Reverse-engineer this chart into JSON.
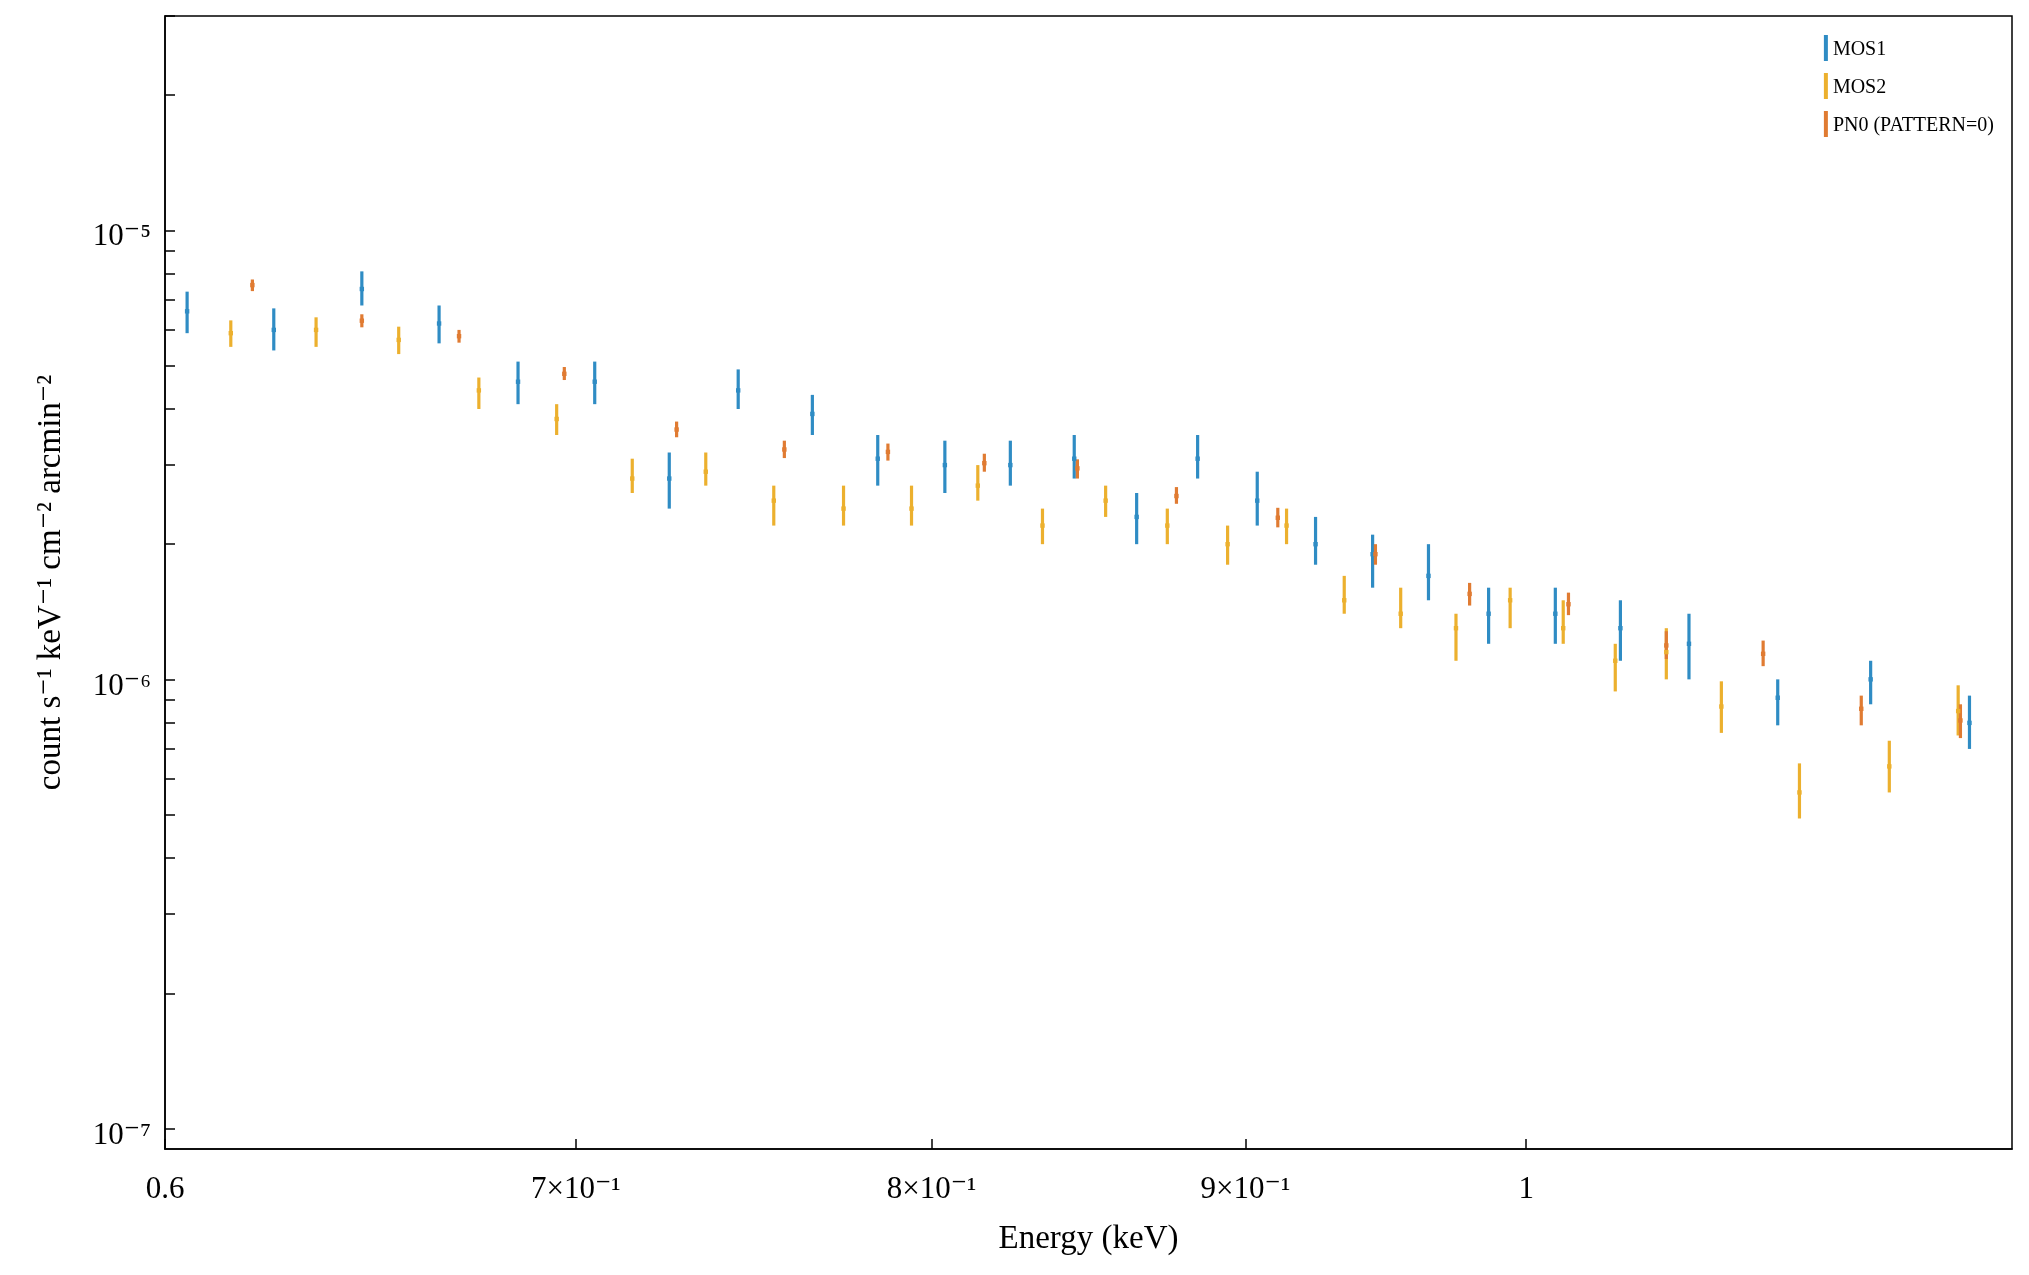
{
  "chart_data": {
    "type": "scatter",
    "xlabel": "Energy (keV)",
    "ylabel": "count s⁻¹ keV⁻¹ cm⁻² arcmin⁻²",
    "log": "xy",
    "marker": "square",
    "legend": "top right",
    "grid": false,
    "xlim": [
      0.6,
      1.2
    ],
    "xticks": [
      {
        "value": 0.6,
        "label": "0.6"
      },
      {
        "value": 0.7,
        "label": "7×10⁻¹"
      },
      {
        "value": 0.8,
        "label": "8×10⁻¹"
      },
      {
        "value": 0.9,
        "label": "9×10⁻¹"
      },
      {
        "value": 1,
        "label": "1"
      }
    ],
    "ylim": [
      9e-08,
      3e-05
    ],
    "yticks": [
      {
        "value": 1e-07,
        "label": "10⁻⁷"
      },
      {
        "value": 2e-07,
        "label": null
      },
      {
        "value": 3e-07,
        "label": null
      },
      {
        "value": 4e-07,
        "label": null
      },
      {
        "value": 5e-07,
        "label": null
      },
      {
        "value": 6e-07,
        "label": null
      },
      {
        "value": 7e-07,
        "label": null
      },
      {
        "value": 8e-07,
        "label": null
      },
      {
        "value": 9e-07,
        "label": null
      },
      {
        "value": 1e-06,
        "label": "10⁻⁶"
      },
      {
        "value": 2e-06,
        "label": null
      },
      {
        "value": 3e-06,
        "label": null
      },
      {
        "value": 4e-06,
        "label": null
      },
      {
        "value": 5e-06,
        "label": null
      },
      {
        "value": 6e-06,
        "label": null
      },
      {
        "value": 7e-06,
        "label": null
      },
      {
        "value": 8e-06,
        "label": null
      },
      {
        "value": 9e-06,
        "label": null
      },
      {
        "value": 1e-05,
        "label": "10⁻⁵"
      },
      {
        "value": 2e-05,
        "label": null
      },
      {
        "value": 3e-05,
        "label": null
      }
    ],
    "series": [
      {
        "name": "MOS1",
        "color": "#2f8cc4",
        "x": [
          0.605,
          0.625,
          0.646,
          0.665,
          0.685,
          0.705,
          0.725,
          0.744,
          0.765,
          0.784,
          0.804,
          0.824,
          0.844,
          0.864,
          0.884,
          0.904,
          0.924,
          0.944,
          0.964,
          0.986,
          1.011,
          1.036,
          1.063,
          1.099,
          1.138,
          1.181
        ],
        "values": [
          6.6e-06,
          6e-06,
          7.4e-06,
          6.2e-06,
          4.6e-06,
          4.6e-06,
          2.8e-06,
          4.4e-06,
          3.9e-06,
          3.1e-06,
          3e-06,
          3e-06,
          3.1e-06,
          2.3e-06,
          3.1e-06,
          2.5e-06,
          2e-06,
          1.9e-06,
          1.7e-06,
          1.4e-06,
          1.4e-06,
          1.3e-06,
          1.2e-06,
          9.1e-07,
          1e-06,
          8e-07
        ],
        "errors": [
          [
            5.9e-06,
            7.3e-06
          ],
          [
            5.4e-06,
            6.7e-06
          ],
          [
            6.8e-06,
            8.1e-06
          ],
          [
            5.6e-06,
            6.8e-06
          ],
          [
            4.1e-06,
            5.1e-06
          ],
          [
            4.1e-06,
            5.1e-06
          ],
          [
            2.4e-06,
            3.2e-06
          ],
          [
            4e-06,
            4.9e-06
          ],
          [
            3.5e-06,
            4.3e-06
          ],
          [
            2.7e-06,
            3.5e-06
          ],
          [
            2.6e-06,
            3.4e-06
          ],
          [
            2.7e-06,
            3.4e-06
          ],
          [
            2.8e-06,
            3.5e-06
          ],
          [
            2e-06,
            2.6e-06
          ],
          [
            2.8e-06,
            3.5e-06
          ],
          [
            2.2e-06,
            2.9e-06
          ],
          [
            1.8e-06,
            2.3e-06
          ],
          [
            1.6e-06,
            2.1e-06
          ],
          [
            1.5e-06,
            2e-06
          ],
          [
            1.2e-06,
            1.6e-06
          ],
          [
            1.2e-06,
            1.6e-06
          ],
          [
            1.1e-06,
            1.5e-06
          ],
          [
            1e-06,
            1.4e-06
          ],
          [
            7.9e-07,
            1e-06
          ],
          [
            8.8e-07,
            1.1e-06
          ],
          [
            7e-07,
            9.2e-07
          ]
        ]
      },
      {
        "name": "MOS2",
        "color": "#ecb02e",
        "x": [
          0.615,
          0.635,
          0.655,
          0.675,
          0.695,
          0.715,
          0.735,
          0.754,
          0.774,
          0.794,
          0.814,
          0.834,
          0.854,
          0.874,
          0.894,
          0.914,
          0.934,
          0.954,
          0.974,
          0.994,
          1.014,
          1.034,
          1.054,
          1.076,
          1.108,
          1.146,
          1.176
        ],
        "values": [
          5.9e-06,
          6e-06,
          5.7e-06,
          4.4e-06,
          3.8e-06,
          2.8e-06,
          2.9e-06,
          2.5e-06,
          2.4e-06,
          2.4e-06,
          2.7e-06,
          2.2e-06,
          2.5e-06,
          2.2e-06,
          2e-06,
          2.2e-06,
          1.5e-06,
          1.4e-06,
          1.3e-06,
          1.5e-06,
          1.3e-06,
          1.1e-06,
          1.15e-06,
          8.7e-07,
          5.6e-07,
          6.4e-07,
          8.5e-07
        ],
        "errors": [
          [
            5.5e-06,
            6.3e-06
          ],
          [
            5.5e-06,
            6.4e-06
          ],
          [
            5.3e-06,
            6.1e-06
          ],
          [
            4e-06,
            4.7e-06
          ],
          [
            3.5e-06,
            4.1e-06
          ],
          [
            2.6e-06,
            3.1e-06
          ],
          [
            2.7e-06,
            3.2e-06
          ],
          [
            2.2e-06,
            2.7e-06
          ],
          [
            2.2e-06,
            2.7e-06
          ],
          [
            2.2e-06,
            2.7e-06
          ],
          [
            2.5e-06,
            3e-06
          ],
          [
            2e-06,
            2.4e-06
          ],
          [
            2.3e-06,
            2.7e-06
          ],
          [
            2e-06,
            2.4e-06
          ],
          [
            1.8e-06,
            2.2e-06
          ],
          [
            2e-06,
            2.4e-06
          ],
          [
            1.4e-06,
            1.7e-06
          ],
          [
            1.3e-06,
            1.6e-06
          ],
          [
            1.1e-06,
            1.4e-06
          ],
          [
            1.3e-06,
            1.6e-06
          ],
          [
            1.2e-06,
            1.5e-06
          ],
          [
            9.4e-07,
            1.2e-06
          ],
          [
            1e-06,
            1.3e-06
          ],
          [
            7.6e-07,
            9.9e-07
          ],
          [
            4.9e-07,
            6.5e-07
          ],
          [
            5.6e-07,
            7.3e-07
          ],
          [
            7.5e-07,
            9.7e-07
          ]
        ]
      },
      {
        "name": "PN0 (PATTERN=0)",
        "color": "#e07b32",
        "x": [
          0.62,
          0.646,
          0.67,
          0.697,
          0.727,
          0.757,
          0.787,
          0.816,
          0.845,
          0.877,
          0.911,
          0.945,
          0.979,
          1.016,
          1.054,
          1.093,
          1.134,
          1.177
        ],
        "values": [
          7.55e-06,
          6.29e-06,
          5.81e-06,
          4.79e-06,
          3.6e-06,
          3.25e-06,
          3.21e-06,
          3.03e-06,
          2.95e-06,
          2.56e-06,
          2.29e-06,
          1.9e-06,
          1.55e-06,
          1.47e-06,
          1.19e-06,
          1.14e-06,
          8.6e-07,
          8.1e-07
        ],
        "errors": [
          [
            7.32e-06,
            7.77e-06
          ],
          [
            6.08e-06,
            6.5e-06
          ],
          [
            5.62e-06,
            6e-06
          ],
          [
            4.64e-06,
            4.96e-06
          ],
          [
            3.46e-06,
            3.75e-06
          ],
          [
            3.11e-06,
            3.4e-06
          ],
          [
            3.07e-06,
            3.35e-06
          ],
          [
            2.9e-06,
            3.18e-06
          ],
          [
            2.8e-06,
            3.09e-06
          ],
          [
            2.46e-06,
            2.68e-06
          ],
          [
            2.18e-06,
            2.41e-06
          ],
          [
            1.8e-06,
            2e-06
          ],
          [
            1.46e-06,
            1.64e-06
          ],
          [
            1.39e-06,
            1.56e-06
          ],
          [
            1.11e-06,
            1.28e-06
          ],
          [
            1.07e-06,
            1.22e-06
          ],
          [
            7.9e-07,
            9.2e-07
          ],
          [
            7.4e-07,
            8.8e-07
          ]
        ]
      }
    ]
  }
}
